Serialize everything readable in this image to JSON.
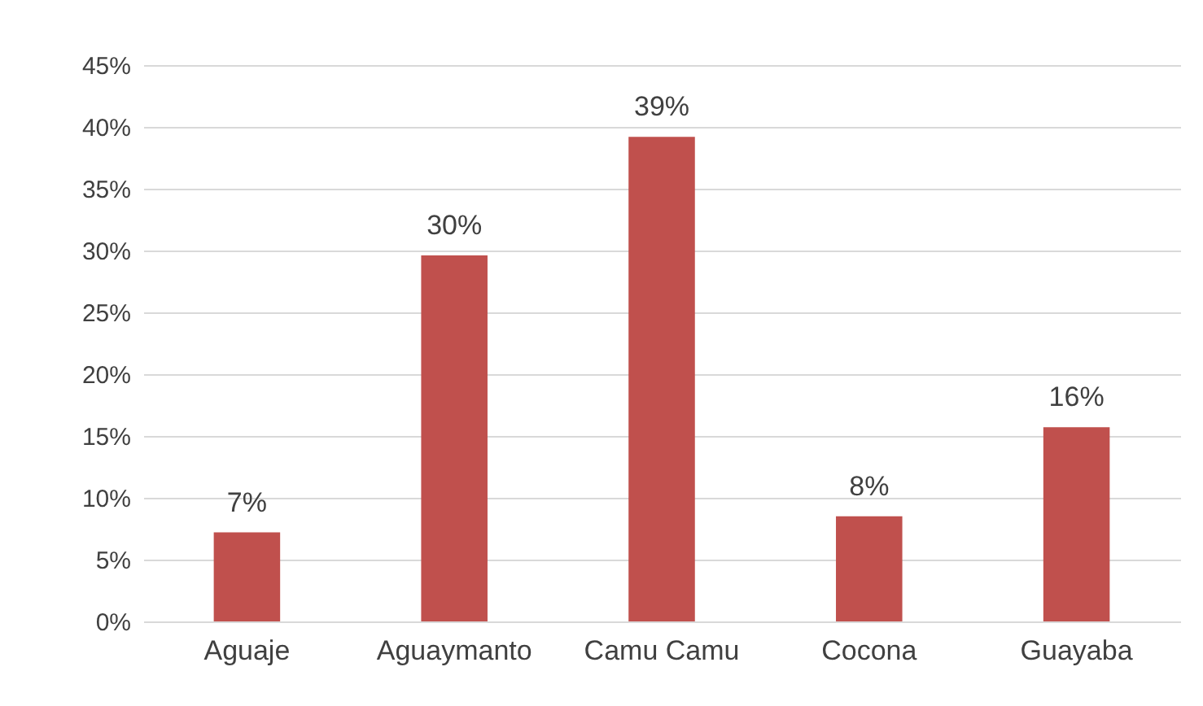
{
  "chart_data": {
    "type": "bar",
    "categories": [
      "Aguaje",
      "Aguaymanto",
      "Camu Camu",
      "Cocona",
      "Guayaba"
    ],
    "values": [
      7.2,
      29.6,
      39.2,
      8.5,
      15.7
    ],
    "value_labels": [
      "7%",
      "30%",
      "39%",
      "8%",
      "16%"
    ],
    "color": "#c0504d",
    "ylim": [
      0,
      45
    ],
    "yticks": [
      {
        "value": 0,
        "label": "0%"
      },
      {
        "value": 5,
        "label": "5%"
      },
      {
        "value": 10,
        "label": "10%"
      },
      {
        "value": 15,
        "label": "15%"
      },
      {
        "value": 20,
        "label": "20%"
      },
      {
        "value": 25,
        "label": "25%"
      },
      {
        "value": 30,
        "label": "30%"
      },
      {
        "value": 35,
        "label": "35%"
      },
      {
        "value": 40,
        "label": "40%"
      },
      {
        "value": 45,
        "label": "45%"
      }
    ],
    "grid": "y"
  }
}
